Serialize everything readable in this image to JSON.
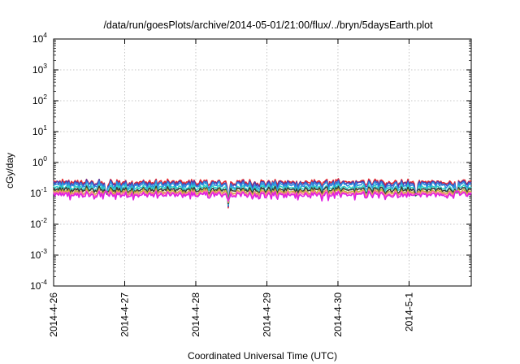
{
  "chart_data": {
    "type": "line",
    "title": "/data/run/goesPlots/archive/2014-05-01/21:00/flux/../bryn/5daysEarth.plot",
    "xlabel": "Coordinated Universal Time (UTC)",
    "ylabel": "cGy/day",
    "y_scale": "log",
    "ylim": [
      0.0001,
      10000
    ],
    "y_ticks": [
      {
        "value": 0.0001,
        "base": "10",
        "exp": "-4"
      },
      {
        "value": 0.001,
        "base": "10",
        "exp": "-3"
      },
      {
        "value": 0.01,
        "base": "10",
        "exp": "-2"
      },
      {
        "value": 0.1,
        "base": "10",
        "exp": "-1"
      },
      {
        "value": 1,
        "base": "10",
        "exp": "0"
      },
      {
        "value": 10,
        "base": "10",
        "exp": "1"
      },
      {
        "value": 100,
        "base": "10",
        "exp": "2"
      },
      {
        "value": 1000,
        "base": "10",
        "exp": "3"
      },
      {
        "value": 10000,
        "base": "10",
        "exp": "4"
      }
    ],
    "x_range_days": [
      "2014-04-26 00:00",
      "2014-05-01 21:00"
    ],
    "x_ticks": [
      "2014-4-26",
      "2014-4-27",
      "2014-4-28",
      "2014-4-29",
      "2014-4-30",
      "2014-5-1"
    ],
    "grid": true,
    "series": [
      {
        "color": "#e8282d",
        "level": 0.23,
        "amplitude": 0.07
      },
      {
        "color": "#4a3db0",
        "level": 0.21,
        "amplitude": 0.07
      },
      {
        "color": "#2c8de0",
        "level": 0.185,
        "amplitude": 0.07
      },
      {
        "color": "#2fd1c6",
        "level": 0.15,
        "amplitude": 0.05
      },
      {
        "color": "#3a3a3a",
        "level": 0.13,
        "amplitude": 0.04
      },
      {
        "color": "#c8b23a",
        "level": 0.11,
        "amplitude": 0.035
      },
      {
        "color": "#ff6fa0",
        "level": 0.098,
        "amplitude": 0.03
      },
      {
        "color": "#e020e0",
        "level": 0.088,
        "amplitude": 0.03
      }
    ],
    "dips": [
      {
        "day": 2.46,
        "value": 0.028
      },
      {
        "day": 5.1,
        "value": 0.05
      },
      {
        "day": 5.67,
        "value": 0.06
      },
      {
        "day": 0.74,
        "value": 0.06
      }
    ]
  }
}
